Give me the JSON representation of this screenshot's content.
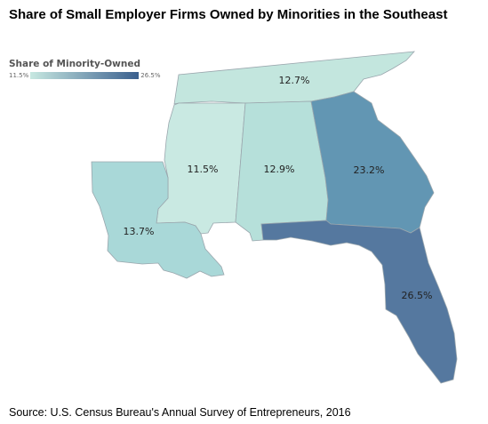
{
  "title": "Share of Small Employer Firms Owned by Minorities in the Southeast",
  "legend": {
    "title": "Share of Minority-Owned",
    "min_label": "11.5%",
    "max_label": "26.5%",
    "color_low": "#c7e8e1",
    "color_high": "#3a5f8e"
  },
  "states": {
    "tennessee": {
      "label": "12.7%",
      "color": "#c3e6de"
    },
    "mississippi": {
      "label": "11.5%",
      "color": "#c9e9e2"
    },
    "alabama": {
      "label": "12.9%",
      "color": "#b6e0da"
    },
    "georgia": {
      "label": "23.2%",
      "color": "#6296b3"
    },
    "louisiana": {
      "label": "13.7%",
      "color": "#a9d8d8"
    },
    "florida": {
      "label": "26.5%",
      "color": "#55789f"
    }
  },
  "source": "Source: U.S. Census Bureau's Annual Survey of Entrepreneurs, 2016"
}
